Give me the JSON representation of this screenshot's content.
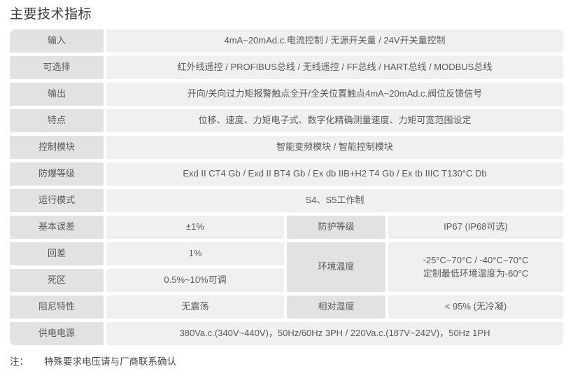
{
  "page": {
    "title": "主要技术指标",
    "note": {
      "label": "注：",
      "text": "特殊要求电压请与厂商联系确认"
    }
  },
  "colors": {
    "label_cell_bg": "#e2e2e2",
    "value_cell_bg": "#f0f0f0",
    "cell_text": "#595959",
    "title_text": "#3c3c3c"
  },
  "table": {
    "rows_full": [
      {
        "label": "输入",
        "value": "4mA~20mAd.c.电流控制 / 无源开关量 / 24V开关量控制"
      },
      {
        "label": "可选择",
        "value": "红外线遥控 / PROFIBUS总线 / 无线遥控 / FF总线 / HART总线 / MODBUS总线"
      },
      {
        "label": "输出",
        "value": "开向/关向过力矩报警触点全开/全关位置触点4mA~20mAd.c.阀位反馈信号"
      },
      {
        "label": "特点",
        "value": "位移、速度、力矩电子式、数字化精确测量速度、力矩可宽范围设定"
      },
      {
        "label": "控制模块",
        "value": "智能变频模块 / 智能控制模块"
      },
      {
        "label": "防爆等级",
        "value": "Exd II CT4 Gb / Exd II BT4 Gb / Ex db IIB+H2 T4 Gb / Ex tb IIIC T130°C Db"
      },
      {
        "label": "运行模式",
        "value": "S4、S5工作制"
      }
    ],
    "split": {
      "basic_error": {
        "label": "基本误差",
        "value": "±1%"
      },
      "protection": {
        "label": "防护等级",
        "value": "IP67 (IP68可选)"
      },
      "hysteresis": {
        "label": "回差",
        "value": "1%"
      },
      "ambient": {
        "label": "环境温度",
        "value_line1": "-25°C~70°C / -40°C~70°C",
        "value_line2": "定制最低环境温度为-60°C"
      },
      "deadband": {
        "label": "死区",
        "value": "0.5%~10%可调"
      },
      "damping": {
        "label": "阻尼特性",
        "value": "无震荡"
      },
      "humidity": {
        "label": "相对湿度",
        "value": "< 95% (无冷凝)"
      }
    },
    "power": {
      "label": "供电电源",
      "value": "380Va.c.(340V~440V)，50Hz/60Hz 3PH / 220Va.c.(187V~242V)，50Hz 1PH"
    }
  }
}
